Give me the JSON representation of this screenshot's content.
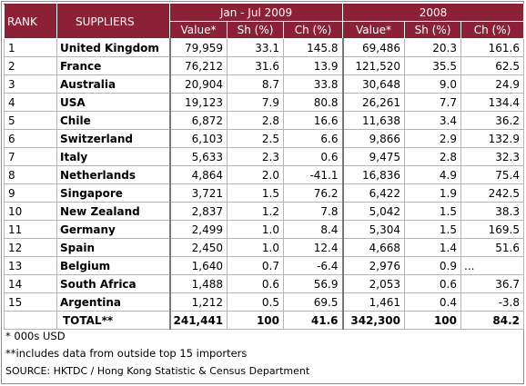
{
  "header": {
    "rank": "RANK",
    "suppliers": "SUPPLIERS",
    "period_current": "Jan - Jul 2009",
    "period_prior": "2008",
    "sub": [
      "Value*",
      "Sh (%)",
      "Ch (%)",
      "Value*",
      "Sh (%)",
      "Ch (%)"
    ]
  },
  "rows": [
    {
      "rank": "1",
      "name": "United Kingdom",
      "v1": "79,959",
      "sh1": "33.1",
      "ch1": "145.8",
      "v2": "69,486",
      "sh2": "20.3",
      "ch2": "161.6"
    },
    {
      "rank": "2",
      "name": "France",
      "v1": "76,212",
      "sh1": "31.6",
      "ch1": "13.9",
      "v2": "121,520",
      "sh2": "35.5",
      "ch2": "62.5"
    },
    {
      "rank": "3",
      "name": "Australia",
      "v1": "20,904",
      "sh1": "8.7",
      "ch1": "33.8",
      "v2": "30,648",
      "sh2": "9.0",
      "ch2": "24.9"
    },
    {
      "rank": "4",
      "name": "USA",
      "v1": "19,123",
      "sh1": "7.9",
      "ch1": "80.8",
      "v2": "26,261",
      "sh2": "7.7",
      "ch2": "134.4"
    },
    {
      "rank": "5",
      "name": "Chile",
      "v1": "6,872",
      "sh1": "2.8",
      "ch1": "16.6",
      "v2": "11,638",
      "sh2": "3.4",
      "ch2": "36.2"
    },
    {
      "rank": "6",
      "name": "Switzerland",
      "v1": "6,103",
      "sh1": "2.5",
      "ch1": "6.6",
      "v2": "9,866",
      "sh2": "2.9",
      "ch2": "132.9"
    },
    {
      "rank": "7",
      "name": "Italy",
      "v1": "5,633",
      "sh1": "2.3",
      "ch1": "0.6",
      "v2": "9,475",
      "sh2": "2.8",
      "ch2": "32.3"
    },
    {
      "rank": "8",
      "name": "Netherlands",
      "v1": "4,864",
      "sh1": "2.0",
      "ch1": "-41.1",
      "v2": "16,836",
      "sh2": "4.9",
      "ch2": "75.4"
    },
    {
      "rank": "9",
      "name": "Singapore",
      "v1": "3,721",
      "sh1": "1.5",
      "ch1": "76.2",
      "v2": "6,422",
      "sh2": "1.9",
      "ch2": "242.5"
    },
    {
      "rank": "10",
      "name": "New Zealand",
      "v1": "2,837",
      "sh1": "1.2",
      "ch1": "7.8",
      "v2": "5,042",
      "sh2": "1.5",
      "ch2": "38.3"
    },
    {
      "rank": "11",
      "name": "Germany",
      "v1": "2,499",
      "sh1": "1.0",
      "ch1": "8.4",
      "v2": "5,304",
      "sh2": "1.5",
      "ch2": "169.5"
    },
    {
      "rank": "12",
      "name": "Spain",
      "v1": "2,450",
      "sh1": "1.0",
      "ch1": "12.4",
      "v2": "4,668",
      "sh2": "1.4",
      "ch2": "51.6"
    },
    {
      "rank": "13",
      "name": "Belgium",
      "v1": "1,640",
      "sh1": "0.7",
      "ch1": "-6.4",
      "v2": "2,976",
      "sh2": "0.9",
      "ch2": "..."
    },
    {
      "rank": "14",
      "name": "South Africa",
      "v1": "1,488",
      "sh1": "0.6",
      "ch1": "56.9",
      "v2": "2,053",
      "sh2": "0.6",
      "ch2": "36.7"
    },
    {
      "rank": "15",
      "name": "Argentina",
      "v1": "1,212",
      "sh1": "0.5",
      "ch1": "69.5",
      "v2": "1,461",
      "sh2": "0.4",
      "ch2": "-3.8"
    }
  ],
  "total": {
    "name": "TOTAL**",
    "v1": "241,441",
    "sh1": "100",
    "ch1": "41.6",
    "v2": "342,300",
    "sh2": "100",
    "ch2": "84.2"
  },
  "notes": {
    "n1": "* 000s USD",
    "n2": "**includes data from outside top 15 importers",
    "source": "SOURCE: HKTDC / Hong Kong Statistic & Census Department"
  },
  "colors": {
    "header_bg": "#8c2035",
    "header_text": "#ffffff"
  }
}
